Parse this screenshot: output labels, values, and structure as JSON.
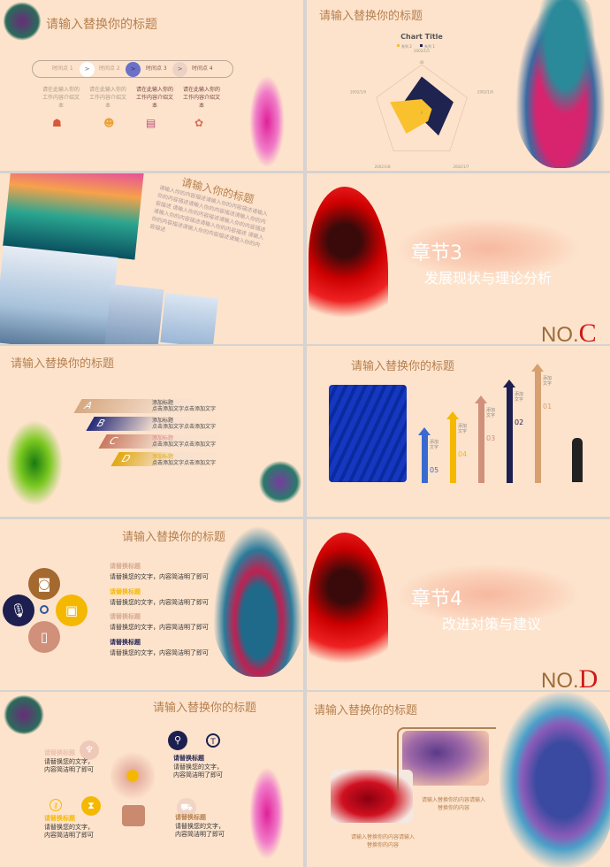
{
  "slides": [
    {
      "title": "请输入替换你的标题",
      "timeline": [
        "时间点 1",
        "时间点 2",
        "时间点 3",
        "时间点 4"
      ],
      "arrow": ">",
      "desc": [
        "请在此输入你的工作内容介绍文本",
        "请在此输入你的工作内容介绍文本",
        "请在此输入你的工作内容介绍文本",
        "请在此输入你的工作内容介绍文本"
      ],
      "icons": [
        "meeting-icon",
        "support-icon",
        "presentation-icon",
        "team-icon"
      ]
    },
    {
      "title": "请输入替换你的标题"
    },
    {
      "title": "请输入你的标题",
      "body": "请输入你的内容描述请输入你的内容描述请输入你的内容描述请输入你的内容描述请输入你的内容描述 请输入你的内容描述请输入你的内容描述请输入你的内容描述请输入你的内容描述 请输入你的内容描述请输入你的内容描述请输入你的内容描述"
    },
    {
      "chapter": "章节3",
      "subtitle": "发展现状与理论分析",
      "no": "NO.",
      "letter": "C"
    },
    {
      "title": "请输入替换你的标题",
      "items": [
        {
          "letter": "A",
          "head": "添加标题",
          "text": "点击添加文字点击添加文字"
        },
        {
          "letter": "B",
          "head": "添加标题",
          "text": "点击添加文字点击添加文字"
        },
        {
          "letter": "C",
          "head": "添加标题",
          "text": "点击添加文字点击添加文字"
        },
        {
          "letter": "D",
          "head": "添加标题",
          "text": "点击添加文字点击添加文字"
        }
      ]
    },
    {
      "title": "请输入替换你的标题",
      "steps": [
        "05",
        "04",
        "03",
        "02",
        "01"
      ],
      "step_label": "添加文字"
    },
    {
      "title": "请输入替换你的标题",
      "items": [
        {
          "head": "请替换标题",
          "text": "请替换您的文字，内容简洁明了即可"
        },
        {
          "head": "请替换标题",
          "text": "请替换您的文字，内容简洁明了即可"
        },
        {
          "head": "请替换标题",
          "text": "请替换您的文字，内容简洁明了即可"
        },
        {
          "head": "请替换标题",
          "text": "请替换您的文字，内容简洁明了即可"
        }
      ]
    },
    {
      "chapter": "章节4",
      "subtitle": "改进对策与建议",
      "no": "NO.",
      "letter": "D"
    },
    {
      "title": "请输入替换你的标题",
      "items": [
        {
          "head": "请替换标题",
          "text": "请替换您的文字，内容简洁明了即可"
        },
        {
          "head": "请替换标题",
          "text": "请替换您的文字，内容简洁明了即可"
        },
        {
          "head": "请替换标题",
          "text": "请替换您的文字，内容简洁明了即可"
        },
        {
          "head": "请替换标题",
          "text": "请替换您的文字，内容简洁明了即可"
        }
      ]
    },
    {
      "title": "请输入替换你的标题",
      "captions": [
        "请输入替换你的内容请输入替换你的内容",
        "请输入替换你的内容请输入替换你的内容"
      ]
    }
  ],
  "colors": {
    "background": "#fde3cc",
    "title": "#b6804f",
    "navy": "#1c1f4f",
    "gold": "#f5b800",
    "rose": "#d0907a",
    "brown": "#a4692f"
  },
  "chart_data": {
    "type": "radar",
    "title": "Chart Title",
    "categories": [
      "2002/1/5",
      "2002/1/6",
      "2002/1/7",
      "2002/1/8",
      "2002/1/9"
    ],
    "range": [
      0,
      40
    ],
    "tick_labels": [
      "40",
      "0"
    ],
    "legend": "top",
    "series": [
      {
        "name": "系列 2",
        "color": "#f9c12e",
        "values": [
          11,
          9,
          9,
          22,
          28
        ]
      },
      {
        "name": "系列 1",
        "color": "#1f2350",
        "values": [
          30,
          28,
          24,
          4,
          18
        ]
      }
    ]
  }
}
